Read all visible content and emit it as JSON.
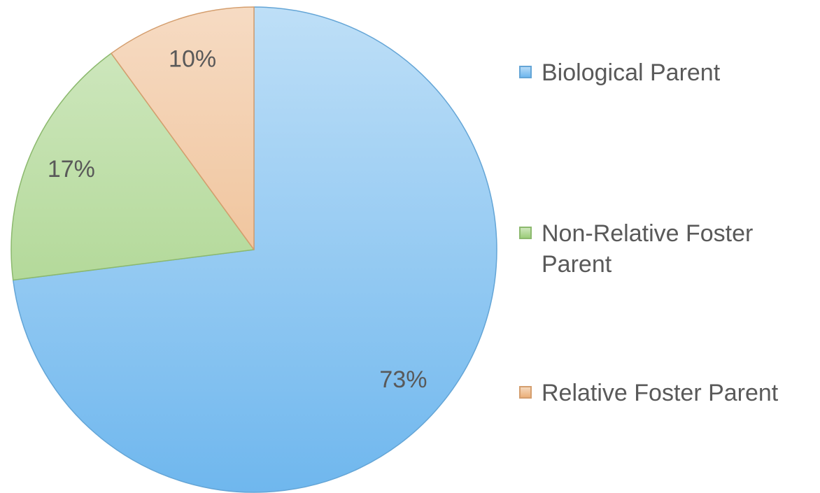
{
  "chart_data": {
    "type": "pie",
    "categories": [
      "Biological Parent",
      "Non-Relative Foster Parent",
      "Relative Foster Parent"
    ],
    "values": [
      73,
      17,
      10
    ],
    "value_labels": [
      "73%",
      "17%",
      "10%"
    ],
    "colors": [
      "#6fb7ee",
      "#9ccd7a",
      "#ebb07a"
    ],
    "legend": "right"
  }
}
